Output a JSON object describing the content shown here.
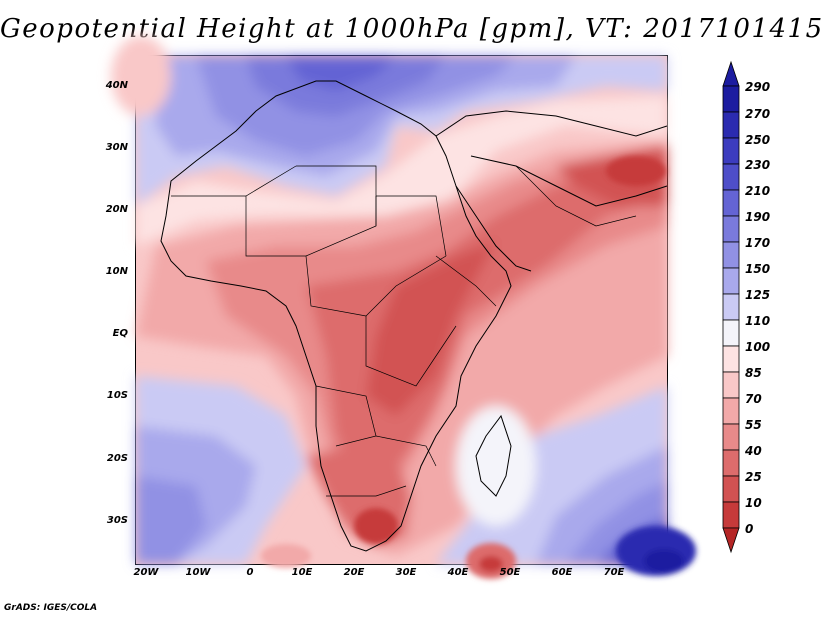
{
  "title": "Geopotential Height at 1000hPa [gpm], VT: 2017101415",
  "lat_labels": [
    "40N",
    "30N",
    "20N",
    "10N",
    "EQ",
    "10S",
    "20S",
    "30S"
  ],
  "lon_labels": [
    "20W",
    "10W",
    "0",
    "10E",
    "20E",
    "30E",
    "40E",
    "50E",
    "60E",
    "70E"
  ],
  "colorbar": {
    "levels": [
      "290",
      "270",
      "250",
      "230",
      "210",
      "190",
      "170",
      "150",
      "125",
      "110",
      "100",
      "85",
      "70",
      "55",
      "40",
      "25",
      "10",
      "0"
    ],
    "colors": {
      "top_cap": "#1c1ca0",
      "290_above": "#1c1ca0",
      "270": "#2b2bb0",
      "250": "#3c3cbf",
      "230": "#4e4ec9",
      "210": "#6464d4",
      "190": "#7a7adc",
      "170": "#9191e4",
      "150": "#a9a9ec",
      "125": "#cacaf4",
      "110": "#f4f4fa",
      "100": "#fde3e3",
      "85": "#f9c8c8",
      "70": "#f2a9a9",
      "55": "#e88a8a",
      "40": "#dd6c6c",
      "25": "#d25252",
      "10": "#c63a3a",
      "0": "#b52525",
      "bottom_cap": "#b52525"
    }
  },
  "credit": "GrADS: IGES/COLA"
}
